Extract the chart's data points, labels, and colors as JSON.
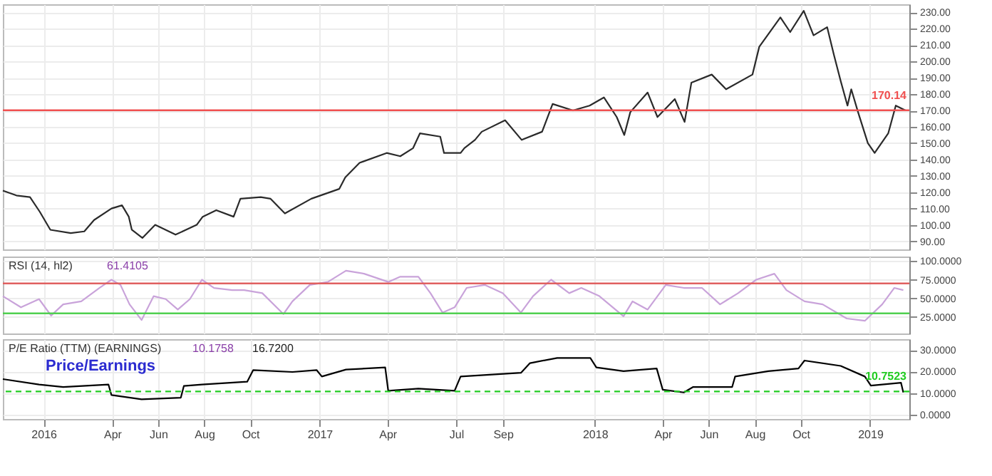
{
  "chart_data": [
    {
      "type": "line",
      "tick_labels": "y",
      "grid": true,
      "xlim": [
        "2015-11-08",
        "2019-02-22"
      ],
      "xticks": [
        {
          "value": "2016-01-01",
          "label": null
        },
        {
          "value": "2016-04-01",
          "label": null
        },
        {
          "value": "2016-06-01",
          "label": null
        },
        {
          "value": "2016-08-01",
          "label": null
        },
        {
          "value": "2016-10-01",
          "label": null
        },
        {
          "value": "2017-01-01",
          "label": null
        },
        {
          "value": "2017-04-01",
          "label": null
        },
        {
          "value": "2017-07-01",
          "label": null
        },
        {
          "value": "2017-09-01",
          "label": null
        },
        {
          "value": "2018-01-01",
          "label": null
        },
        {
          "value": "2018-04-01",
          "label": null
        },
        {
          "value": "2018-06-01",
          "label": null
        },
        {
          "value": "2018-08-01",
          "label": null
        },
        {
          "value": "2018-10-01",
          "label": null
        },
        {
          "value": "2019-01-01",
          "label": null
        }
      ],
      "ylim": [
        85,
        235
      ],
      "yticks": [
        {
          "value": 90,
          "label": "90.00"
        },
        {
          "value": 100,
          "label": "100.00"
        },
        {
          "value": 110,
          "label": "110.00"
        },
        {
          "value": 120,
          "label": "120.00"
        },
        {
          "value": 130,
          "label": "130.00"
        },
        {
          "value": 140,
          "label": "140.00"
        },
        {
          "value": 150,
          "label": "150.00"
        },
        {
          "value": 160,
          "label": "160.00"
        },
        {
          "value": 170,
          "label": "170.00"
        },
        {
          "value": 180,
          "label": "180.00"
        },
        {
          "value": 190,
          "label": "190.00"
        },
        {
          "value": 200,
          "label": "200.00"
        },
        {
          "value": 210,
          "label": "210.00"
        },
        {
          "value": 220,
          "label": "220.00"
        },
        {
          "value": 230,
          "label": "230.00"
        }
      ],
      "ref_lines": [
        {
          "axis": "y",
          "value": 170.14,
          "label": "170.14",
          "color": "#f05050"
        }
      ],
      "x": [
        "2015-11-08",
        "2015-11-26",
        "2015-12-14",
        "2015-12-27",
        "2016-01-10",
        "2016-02-06",
        "2016-02-24",
        "2016-03-08",
        "2016-03-31",
        "2016-04-14",
        "2016-04-23",
        "2016-04-27",
        "2016-05-11",
        "2016-05-28",
        "2016-06-24",
        "2016-07-22",
        "2016-07-30",
        "2016-08-17",
        "2016-09-09",
        "2016-09-18",
        "2016-10-15",
        "2016-10-28",
        "2016-11-16",
        "2016-12-21",
        "2017-01-27",
        "2017-02-04",
        "2017-02-23",
        "2017-03-31",
        "2017-04-18",
        "2017-05-05",
        "2017-05-14",
        "2017-06-10",
        "2017-06-15",
        "2017-07-07",
        "2017-07-12",
        "2017-07-26",
        "2017-08-04",
        "2017-09-04",
        "2017-09-26",
        "2017-10-23",
        "2017-11-06",
        "2017-12-03",
        "2017-12-25",
        "2018-01-13",
        "2018-01-30",
        "2018-02-09",
        "2018-02-17",
        "2018-03-12",
        "2018-03-25",
        "2018-04-17",
        "2018-04-30",
        "2018-05-09",
        "2018-06-05",
        "2018-06-24",
        "2018-07-29",
        "2018-08-07",
        "2018-09-04",
        "2018-09-17",
        "2018-10-05",
        "2018-10-18",
        "2018-11-05",
        "2018-11-14",
        "2018-11-23",
        "2018-12-02",
        "2018-12-07",
        "2018-12-16",
        "2018-12-29",
        "2019-01-07",
        "2019-01-25",
        "2019-02-04",
        "2019-02-17"
      ],
      "series": [
        {
          "color": "#2a2a2a",
          "values": [
            121,
            118,
            117,
            108,
            97,
            95,
            96,
            103,
            110,
            112,
            105,
            97,
            92,
            100,
            94,
            100,
            105,
            109,
            105,
            116,
            117,
            116,
            107,
            116,
            122,
            129,
            138,
            144,
            142,
            147,
            156,
            154,
            144,
            144,
            147,
            152,
            157,
            164,
            152,
            157,
            174,
            170,
            173,
            178,
            166,
            155,
            169,
            181,
            166,
            177,
            163,
            187,
            192,
            183,
            192,
            209,
            227,
            218,
            231,
            216,
            221,
            204,
            188,
            173,
            183,
            169,
            150,
            144,
            156,
            173,
            170
          ]
        }
      ]
    },
    {
      "type": "line",
      "title": "RSI (14, hl2)",
      "annotations": [
        "61.4105"
      ],
      "tick_labels": "y",
      "grid": true,
      "xlim": [
        "2015-11-08",
        "2019-02-22"
      ],
      "xticks": [
        {
          "value": "2016-01-01",
          "label": null
        },
        {
          "value": "2016-04-01",
          "label": null
        },
        {
          "value": "2016-06-01",
          "label": null
        },
        {
          "value": "2016-08-01",
          "label": null
        },
        {
          "value": "2016-10-01",
          "label": null
        },
        {
          "value": "2017-01-01",
          "label": null
        },
        {
          "value": "2017-04-01",
          "label": null
        },
        {
          "value": "2017-07-01",
          "label": null
        },
        {
          "value": "2017-09-01",
          "label": null
        },
        {
          "value": "2018-01-01",
          "label": null
        },
        {
          "value": "2018-04-01",
          "label": null
        },
        {
          "value": "2018-06-01",
          "label": null
        },
        {
          "value": "2018-08-01",
          "label": null
        },
        {
          "value": "2018-10-01",
          "label": null
        },
        {
          "value": "2019-01-01",
          "label": null
        }
      ],
      "ylim": [
        3,
        106
      ],
      "yticks": [
        {
          "value": 25,
          "label": "25.0000"
        },
        {
          "value": 50,
          "label": "50.0000"
        },
        {
          "value": 75,
          "label": "75.0000"
        },
        {
          "value": 100,
          "label": "100.0000"
        }
      ],
      "ref_lines": [
        {
          "axis": "y",
          "value": 70,
          "color": "#e06060"
        },
        {
          "axis": "y",
          "value": 30,
          "color": "#50d050"
        }
      ],
      "x": [
        "2015-11-08",
        "2015-12-02",
        "2015-12-26",
        "2016-01-11",
        "2016-01-27",
        "2016-02-20",
        "2016-03-15",
        "2016-03-31",
        "2016-04-12",
        "2016-04-24",
        "2016-05-10",
        "2016-05-26",
        "2016-06-11",
        "2016-06-27",
        "2016-07-13",
        "2016-07-29",
        "2016-08-14",
        "2016-09-07",
        "2016-09-23",
        "2016-10-17",
        "2016-11-14",
        "2016-11-26",
        "2016-12-19",
        "2017-01-12",
        "2017-02-05",
        "2017-03-01",
        "2017-04-02",
        "2017-04-18",
        "2017-05-12",
        "2017-05-28",
        "2017-06-13",
        "2017-06-29",
        "2017-07-15",
        "2017-08-08",
        "2017-09-01",
        "2017-09-25",
        "2017-10-11",
        "2017-11-04",
        "2017-11-28",
        "2017-12-14",
        "2018-01-07",
        "2018-02-08",
        "2018-02-20",
        "2018-03-12",
        "2018-04-05",
        "2018-04-29",
        "2018-05-23",
        "2018-06-16",
        "2018-07-10",
        "2018-08-03",
        "2018-08-27",
        "2018-09-12",
        "2018-10-06",
        "2018-10-30",
        "2018-12-01",
        "2018-12-25",
        "2019-01-17",
        "2019-02-02",
        "2019-02-14"
      ],
      "series": [
        {
          "color": "#c9a3da",
          "values": [
            53,
            38,
            49,
            27,
            42,
            46,
            64,
            75,
            68,
            42,
            21,
            53,
            49,
            35,
            49,
            75,
            64,
            61,
            61,
            57,
            29,
            46,
            68,
            72,
            87,
            83,
            72,
            79,
            79,
            57,
            31,
            38,
            64,
            68,
            57,
            31,
            53,
            75,
            57,
            64,
            53,
            26,
            46,
            35,
            68,
            64,
            64,
            42,
            57,
            75,
            83,
            61,
            46,
            42,
            23,
            20,
            42,
            64,
            61
          ]
        }
      ]
    },
    {
      "type": "line",
      "title": "P/E Ratio (TTM) (EARNINGS)",
      "grid": true,
      "annotations": [
        "10.1758",
        "16.7200",
        "Price/Earnings"
      ],
      "xlim": [
        "2015-11-08",
        "2019-02-22"
      ],
      "xticks": [
        {
          "value": "2016-01-01",
          "label": "2016"
        },
        {
          "value": "2016-04-01",
          "label": "Apr"
        },
        {
          "value": "2016-06-01",
          "label": "Jun"
        },
        {
          "value": "2016-08-01",
          "label": "Aug"
        },
        {
          "value": "2016-10-01",
          "label": "Oct"
        },
        {
          "value": "2017-01-01",
          "label": "2017"
        },
        {
          "value": "2017-04-01",
          "label": "Apr"
        },
        {
          "value": "2017-07-01",
          "label": "Jul"
        },
        {
          "value": "2017-09-01",
          "label": "Sep"
        },
        {
          "value": "2018-01-01",
          "label": "2018"
        },
        {
          "value": "2018-04-01",
          "label": "Apr"
        },
        {
          "value": "2018-06-01",
          "label": "Jun"
        },
        {
          "value": "2018-08-01",
          "label": "Aug"
        },
        {
          "value": "2018-10-01",
          "label": "Oct"
        },
        {
          "value": "2019-01-01",
          "label": "2019"
        }
      ],
      "ylim": [
        -2,
        35
      ],
      "yticks": [
        {
          "value": 0,
          "label": "0.0000"
        },
        {
          "value": 10,
          "label": "10.0000"
        },
        {
          "value": 20,
          "label": "20.0000"
        },
        {
          "value": 30,
          "label": "30.0000"
        }
      ],
      "ref_lines": [
        {
          "axis": "y",
          "value": 10.7523,
          "label": "10.7523",
          "color": "#22cc22",
          "line_style": "dashed"
        }
      ],
      "x": [
        "2015-11-08",
        "2015-12-26",
        "2016-01-27",
        "2016-03-27",
        "2016-03-31",
        "2016-05-10",
        "2016-07-01",
        "2016-07-05",
        "2016-07-29",
        "2016-09-27",
        "2016-10-05",
        "2016-11-26",
        "2016-12-28",
        "2017-01-04",
        "2017-02-05",
        "2017-03-29",
        "2017-04-02",
        "2017-05-12",
        "2017-06-29",
        "2017-07-07",
        "2017-09-25",
        "2017-10-07",
        "2017-11-12",
        "2017-12-26",
        "2018-01-03",
        "2018-02-08",
        "2018-03-24",
        "2018-04-01",
        "2018-04-29",
        "2018-05-11",
        "2018-07-02",
        "2018-07-06",
        "2018-08-19",
        "2018-09-28",
        "2018-10-06",
        "2018-11-23",
        "2018-12-25",
        "2019-01-02",
        "2019-02-11",
        "2019-02-14"
      ],
      "series": [
        {
          "color": "#000000",
          "values": [
            16.5,
            14.0,
            12.8,
            14.0,
            9.1,
            7.1,
            7.9,
            13.3,
            14.0,
            15.3,
            20.7,
            19.8,
            20.7,
            17.7,
            20.9,
            21.9,
            11.1,
            12.1,
            11.1,
            17.7,
            19.4,
            23.9,
            26.3,
            26.3,
            21.9,
            20.2,
            21.4,
            11.6,
            10.3,
            12.8,
            12.8,
            17.7,
            20.2,
            21.4,
            25.1,
            22.6,
            17.7,
            13.5,
            14.8,
            10.3
          ]
        }
      ]
    }
  ]
}
